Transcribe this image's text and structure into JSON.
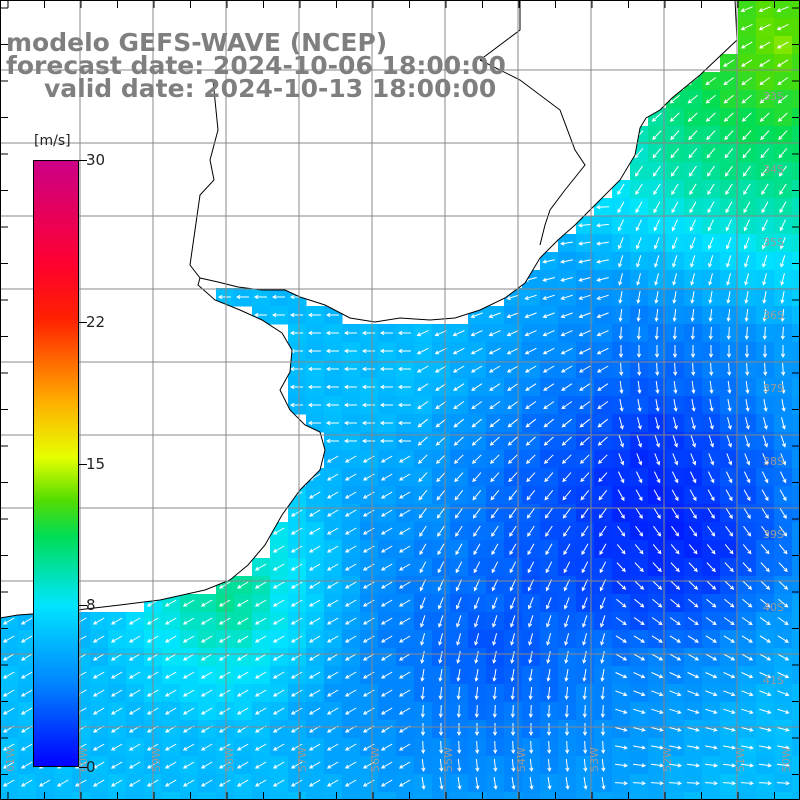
{
  "title": {
    "line1": "modelo GEFS-WAVE (NCEP)",
    "line2": "forecast date: 2024-10-06 18:00:00",
    "line3": "valid date: 2024-10-13 18:00:00"
  },
  "colorbar": {
    "unit": "[m/s]",
    "min": 0,
    "max": 30,
    "ticks": [
      {
        "label": "30",
        "value": 30
      },
      {
        "label": "22",
        "value": 22
      },
      {
        "label": "15",
        "value": 15
      },
      {
        "label": "8",
        "value": 8
      },
      {
        "label": "0",
        "value": 0
      }
    ]
  },
  "lat_labels": [
    "33S",
    "34S",
    "35S",
    "36S",
    "37S",
    "38S",
    "39S",
    "40S",
    "41S"
  ],
  "lon_labels": [
    "61W",
    "60W",
    "59W",
    "58W",
    "57W",
    "56W",
    "55W",
    "54W",
    "53W",
    "52W",
    "51W",
    "50W"
  ],
  "colors": {
    "land": "#ffffff",
    "coast": "#000000",
    "grid": "#888888",
    "arrows": "#ffffff",
    "title": "#7f7f7f"
  }
}
